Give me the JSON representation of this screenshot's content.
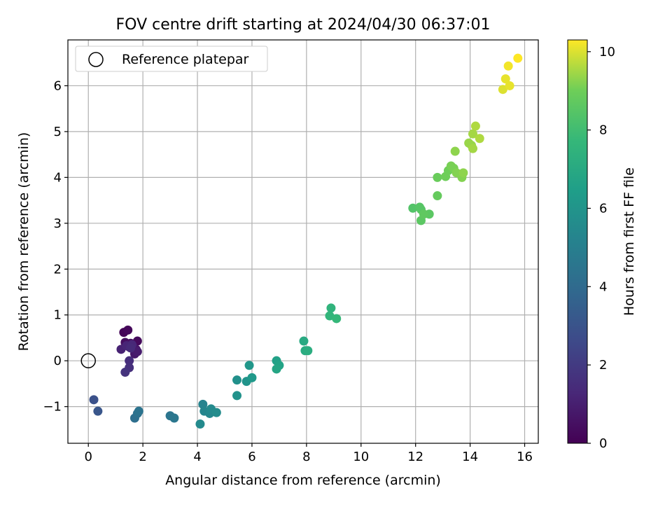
{
  "chart_data": {
    "type": "scatter",
    "title": "FOV centre drift starting at 2024/04/30 06:37:01",
    "xlabel": "Angular distance from reference (arcmin)",
    "ylabel": "Rotation from reference (arcmin)",
    "xlim": [
      -0.75,
      16.5
    ],
    "ylim": [
      -1.8,
      7.0
    ],
    "xticks": [
      0,
      2,
      4,
      6,
      8,
      10,
      12,
      14,
      16
    ],
    "yticks": [
      -1,
      0,
      1,
      2,
      3,
      4,
      5,
      6
    ],
    "grid": true,
    "legend": {
      "position": "top-left",
      "entries": [
        "Reference platepar"
      ]
    },
    "reference_point": {
      "x": 0,
      "y": 0
    },
    "colorbar": {
      "label": "Hours from first FF file",
      "range": [
        0,
        10.3
      ],
      "ticks": [
        0,
        2,
        4,
        6,
        8,
        10
      ],
      "colormap": "viridis"
    },
    "points": [
      {
        "x": 1.3,
        "y": 0.62,
        "c": 0.1
      },
      {
        "x": 1.45,
        "y": 0.67,
        "c": 0.2
      },
      {
        "x": 1.8,
        "y": 0.43,
        "c": 0.3
      },
      {
        "x": 1.35,
        "y": 0.4,
        "c": 0.4
      },
      {
        "x": 1.55,
        "y": 0.38,
        "c": 0.5
      },
      {
        "x": 1.65,
        "y": 0.3,
        "c": 0.6
      },
      {
        "x": 1.75,
        "y": 0.25,
        "c": 0.7
      },
      {
        "x": 1.7,
        "y": 0.15,
        "c": 0.8
      },
      {
        "x": 1.8,
        "y": 0.2,
        "c": 0.9
      },
      {
        "x": 1.5,
        "y": 0.3,
        "c": 1.0
      },
      {
        "x": 1.2,
        "y": 0.25,
        "c": 1.1
      },
      {
        "x": 1.4,
        "y": 0.33,
        "c": 1.2
      },
      {
        "x": 1.6,
        "y": 0.35,
        "c": 1.3
      },
      {
        "x": 1.55,
        "y": 0.28,
        "c": 1.4
      },
      {
        "x": 1.5,
        "y": 0.0,
        "c": 1.5
      },
      {
        "x": 1.5,
        "y": -0.15,
        "c": 1.6
      },
      {
        "x": 1.35,
        "y": -0.25,
        "c": 1.7
      },
      {
        "x": 0.2,
        "y": -0.85,
        "c": 2.9
      },
      {
        "x": 0.35,
        "y": -1.1,
        "c": 3.1
      },
      {
        "x": 1.7,
        "y": -1.25,
        "c": 4.2
      },
      {
        "x": 1.8,
        "y": -1.15,
        "c": 4.3
      },
      {
        "x": 1.85,
        "y": -1.1,
        "c": 4.4
      },
      {
        "x": 3.0,
        "y": -1.2,
        "c": 4.5
      },
      {
        "x": 3.15,
        "y": -1.25,
        "c": 4.6
      },
      {
        "x": 4.2,
        "y": -0.95,
        "c": 5.2
      },
      {
        "x": 4.25,
        "y": -1.1,
        "c": 5.3
      },
      {
        "x": 4.45,
        "y": -1.15,
        "c": 5.4
      },
      {
        "x": 4.5,
        "y": -1.05,
        "c": 5.5
      },
      {
        "x": 4.7,
        "y": -1.13,
        "c": 5.6
      },
      {
        "x": 4.1,
        "y": -1.38,
        "c": 5.5
      },
      {
        "x": 5.45,
        "y": -0.42,
        "c": 5.8
      },
      {
        "x": 5.45,
        "y": -0.76,
        "c": 5.9
      },
      {
        "x": 5.8,
        "y": -0.45,
        "c": 6.0
      },
      {
        "x": 5.9,
        "y": -0.1,
        "c": 6.1
      },
      {
        "x": 6.0,
        "y": -0.37,
        "c": 6.2
      },
      {
        "x": 6.9,
        "y": 0.0,
        "c": 6.6
      },
      {
        "x": 7.0,
        "y": -0.1,
        "c": 6.7
      },
      {
        "x": 6.9,
        "y": -0.18,
        "c": 6.8
      },
      {
        "x": 7.9,
        "y": 0.43,
        "c": 7.0
      },
      {
        "x": 7.95,
        "y": 0.22,
        "c": 7.1
      },
      {
        "x": 8.05,
        "y": 0.22,
        "c": 7.2
      },
      {
        "x": 8.9,
        "y": 1.15,
        "c": 7.5
      },
      {
        "x": 8.85,
        "y": 0.98,
        "c": 7.6
      },
      {
        "x": 9.1,
        "y": 0.92,
        "c": 7.7
      },
      {
        "x": 11.9,
        "y": 3.33,
        "c": 8.4
      },
      {
        "x": 12.15,
        "y": 3.35,
        "c": 8.5
      },
      {
        "x": 12.2,
        "y": 3.3,
        "c": 8.5
      },
      {
        "x": 12.2,
        "y": 3.06,
        "c": 8.6
      },
      {
        "x": 12.5,
        "y": 3.2,
        "c": 8.6
      },
      {
        "x": 12.3,
        "y": 3.2,
        "c": 8.7
      },
      {
        "x": 12.8,
        "y": 3.6,
        "c": 8.8
      },
      {
        "x": 12.8,
        "y": 4.0,
        "c": 8.9
      },
      {
        "x": 13.1,
        "y": 4.02,
        "c": 9.0
      },
      {
        "x": 13.2,
        "y": 4.15,
        "c": 9.0
      },
      {
        "x": 13.3,
        "y": 4.25,
        "c": 9.1
      },
      {
        "x": 13.4,
        "y": 4.2,
        "c": 9.1
      },
      {
        "x": 13.5,
        "y": 4.1,
        "c": 9.2
      },
      {
        "x": 13.7,
        "y": 4.0,
        "c": 9.2
      },
      {
        "x": 13.75,
        "y": 4.1,
        "c": 9.3
      },
      {
        "x": 13.45,
        "y": 4.57,
        "c": 9.3
      },
      {
        "x": 13.95,
        "y": 4.75,
        "c": 9.4
      },
      {
        "x": 14.05,
        "y": 4.7,
        "c": 9.4
      },
      {
        "x": 14.1,
        "y": 4.63,
        "c": 9.5
      },
      {
        "x": 14.1,
        "y": 4.95,
        "c": 9.5
      },
      {
        "x": 14.2,
        "y": 5.12,
        "c": 9.6
      },
      {
        "x": 14.35,
        "y": 4.85,
        "c": 9.6
      },
      {
        "x": 15.2,
        "y": 5.92,
        "c": 10.0
      },
      {
        "x": 15.45,
        "y": 6.0,
        "c": 10.1
      },
      {
        "x": 15.3,
        "y": 6.15,
        "c": 10.1
      },
      {
        "x": 15.4,
        "y": 6.43,
        "c": 10.2
      },
      {
        "x": 15.75,
        "y": 6.6,
        "c": 10.3
      }
    ]
  }
}
